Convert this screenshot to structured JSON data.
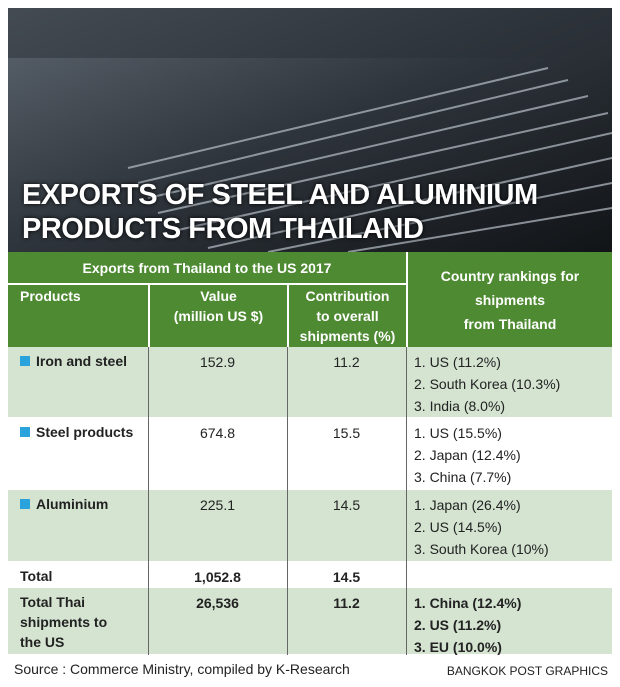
{
  "header": {
    "title_lines": [
      "EXPORTS OF STEEL AND ALUMINIUM",
      "PRODUCTS FROM THAILAND"
    ]
  },
  "table": {
    "group_header": "Exports from Thailand to the US 2017",
    "rankings_header": [
      "Country rankings for",
      "shipments",
      "from Thailand"
    ],
    "columns": [
      [
        "Products"
      ],
      [
        "Value",
        "(million US $)"
      ],
      [
        "Contribution",
        "to overall",
        "shipments (%)"
      ]
    ],
    "rows": [
      {
        "product": [
          "Iron and steel"
        ],
        "value": "152.9",
        "contribution": "11.2",
        "rankings": [
          "1. US (11.2%)",
          "2. South Korea (10.3%)",
          "3. India (8.0%)"
        ]
      },
      {
        "product": [
          "Steel products"
        ],
        "value": "674.8",
        "contribution": "15.5",
        "rankings": [
          "1. US (15.5%)",
          "2. Japan (12.4%)",
          "3. China (7.7%)"
        ]
      },
      {
        "product": [
          "Aluminium"
        ],
        "value": "225.1",
        "contribution": "14.5",
        "rankings": [
          "1. Japan (26.4%)",
          "2. US (14.5%)",
          "3. South Korea (10%)"
        ]
      },
      {
        "product": [
          "Total"
        ],
        "value": "1,052.8",
        "contribution": "14.5",
        "rankings": []
      },
      {
        "product": [
          "Total Thai",
          "shipments to",
          "the US"
        ],
        "value": "26,536",
        "contribution": "11.2",
        "rankings": [
          "1. China (12.4%)",
          "2. US (11.2%)",
          "3. EU (10.0%)"
        ]
      }
    ]
  },
  "footer": {
    "source": "Source : Commerce Ministry, compiled by K-Research",
    "credit": "BANGKOK POST GRAPHICS"
  }
}
